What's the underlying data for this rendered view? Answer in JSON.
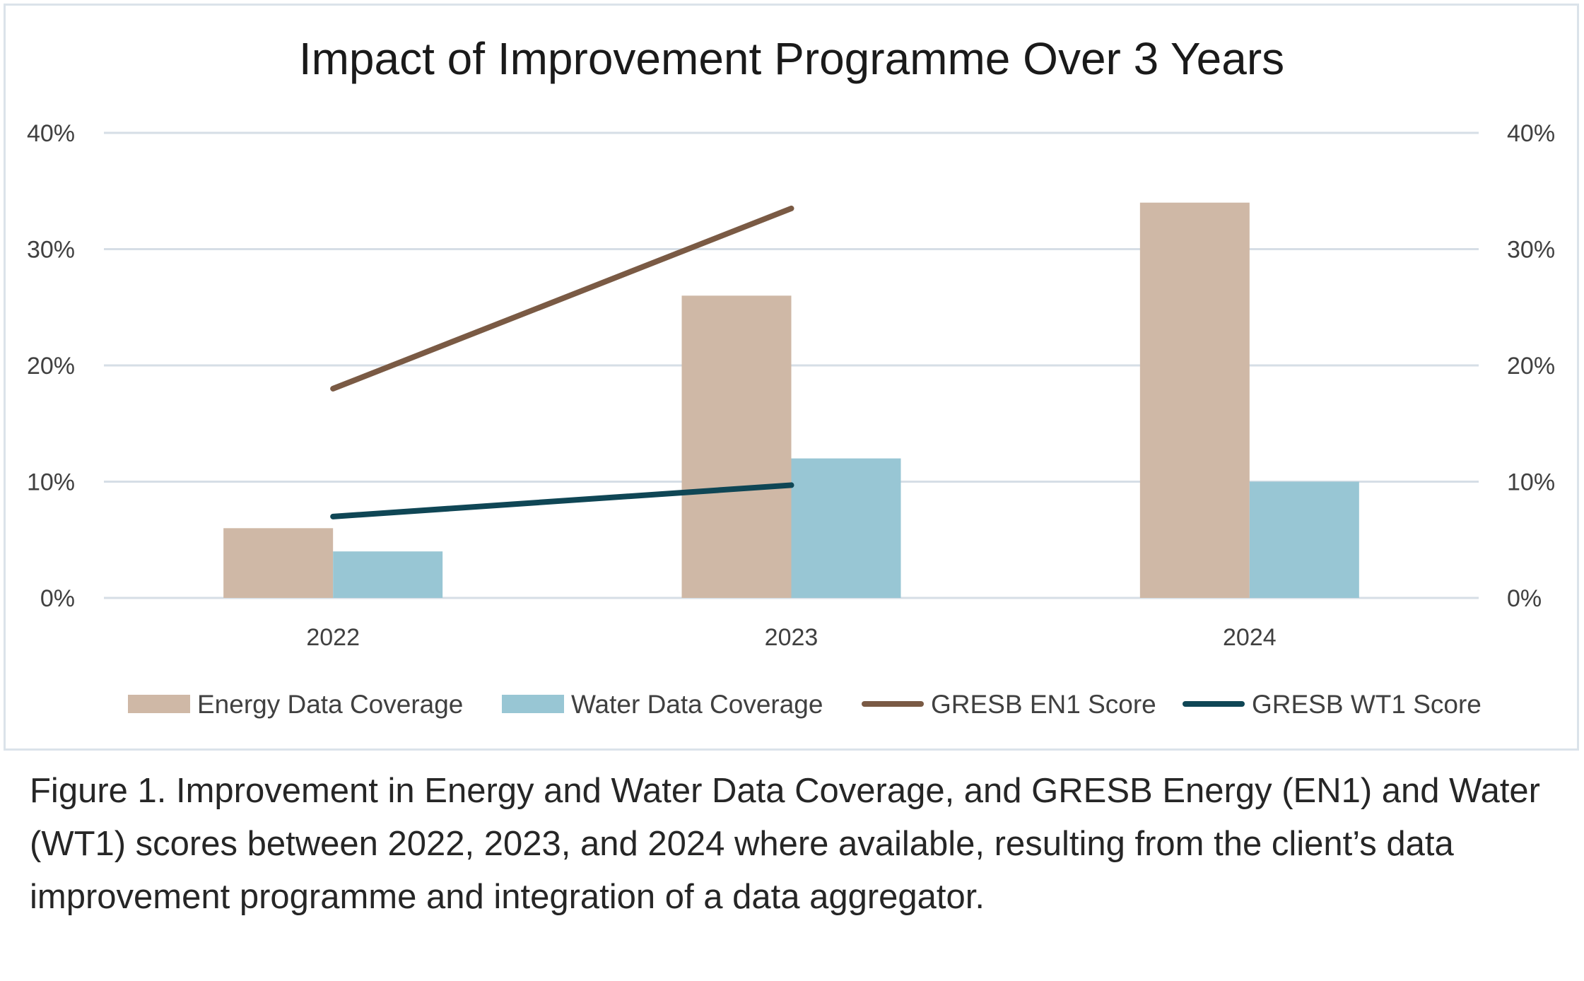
{
  "chart_data": {
    "type": "bar",
    "title": "Impact of Improvement Programme Over 3 Years",
    "categories": [
      "2022",
      "2023",
      "2024"
    ],
    "ylim": [
      0,
      40
    ],
    "yticks": [
      "0%",
      "10%",
      "20%",
      "30%",
      "40%"
    ],
    "ytick_values": [
      0,
      10,
      20,
      30,
      40
    ],
    "grid": true,
    "legend_position": "bottom",
    "series": [
      {
        "name": "Energy Data Coverage",
        "kind": "bar",
        "color": "#cfb8a6",
        "values": [
          6,
          26,
          34
        ]
      },
      {
        "name": "Water Data Coverage",
        "kind": "bar",
        "color": "#98c6d4",
        "values": [
          4,
          12,
          10
        ]
      },
      {
        "name": "GRESB EN1 Score",
        "kind": "line",
        "color": "#7a5a44",
        "values": [
          18,
          33.5,
          null
        ]
      },
      {
        "name": "GRESB WT1 Score",
        "kind": "line",
        "color": "#0f4655",
        "values": [
          7,
          9.7,
          null
        ]
      }
    ]
  },
  "caption": "Figure 1. Improvement in Energy and Water Data Coverage, and GRESB Energy (EN1) and Water (WT1) scores between 2022, 2023, and 2024 where available, resulting from the client’s data improvement programme and integration of a data aggregator."
}
